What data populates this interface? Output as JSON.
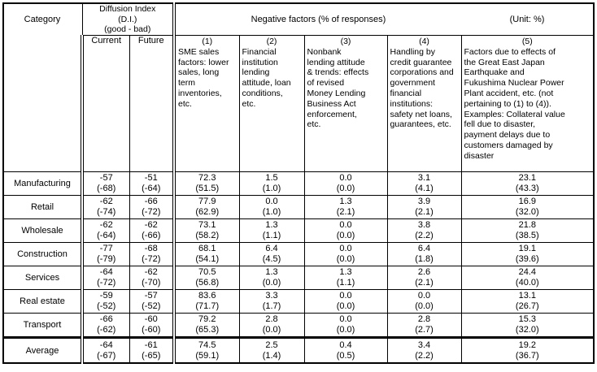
{
  "header": {
    "category": "Category",
    "diffusion_index": "Diffusion Index\n(D.I.)\n(good - bad)",
    "negative_factors": "Negative factors (% of responses)",
    "unit": "(Unit: %)",
    "current": "Current",
    "future": "Future"
  },
  "factors": [
    {
      "num": "(1)",
      "desc": "SME sales\nfactors: lower\nsales, long\nterm\ninventories,\netc."
    },
    {
      "num": "(2)",
      "desc": "Financial\ninstitution\nlending\nattitude, loan\nconditions,\netc."
    },
    {
      "num": "(3)",
      "desc": "Nonbank\nlending attitude\n& trends: effects\nof revised\nMoney Lending\nBusiness Act\nenforcement,\netc."
    },
    {
      "num": "(4)",
      "desc": "Handling by\ncredit guarantee\ncorporations and\ngovernment\nfinancial\ninstitutions:\nsafety net loans,\nguarantees, etc."
    },
    {
      "num": "(5)",
      "desc": "Factors due to effects of\nthe Great East Japan\nEarthquake and\nFukushima Nuclear Power\nPlant accident, etc. (not\npertaining to (1) to (4)).\nExamples: Collateral value\nfell due to disaster,\npayment delays due to\ncustomers damaged by\ndisaster"
    }
  ],
  "rows": [
    {
      "category": "Manufacturing",
      "average": false,
      "cells": [
        [
          "-57",
          "(-68)"
        ],
        [
          "-51",
          "(-64)"
        ],
        [
          "72.3",
          "(51.5)"
        ],
        [
          "1.5",
          "(1.0)"
        ],
        [
          "0.0",
          "(0.0)"
        ],
        [
          "3.1",
          "(4.1)"
        ],
        [
          "23.1",
          "(43.3)"
        ]
      ]
    },
    {
      "category": "Retail",
      "average": false,
      "cells": [
        [
          "-62",
          "(-74)"
        ],
        [
          "-66",
          "(-72)"
        ],
        [
          "77.9",
          "(62.9)"
        ],
        [
          "0.0",
          "(1.0)"
        ],
        [
          "1.3",
          "(2.1)"
        ],
        [
          "3.9",
          "(2.1)"
        ],
        [
          "16.9",
          "(32.0)"
        ]
      ]
    },
    {
      "category": "Wholesale",
      "average": false,
      "cells": [
        [
          "-62",
          "(-64)"
        ],
        [
          "-62",
          "(-66)"
        ],
        [
          "73.1",
          "(58.2)"
        ],
        [
          "1.3",
          "(1.1)"
        ],
        [
          "0.0",
          "(0.0)"
        ],
        [
          "3.8",
          "(2.2)"
        ],
        [
          "21.8",
          "(38.5)"
        ]
      ]
    },
    {
      "category": "Construction",
      "average": false,
      "cells": [
        [
          "-77",
          "(-79)"
        ],
        [
          "-68",
          "(-72)"
        ],
        [
          "68.1",
          "(54.1)"
        ],
        [
          "6.4",
          "(4.5)"
        ],
        [
          "0.0",
          "(0.0)"
        ],
        [
          "6.4",
          "(1.8)"
        ],
        [
          "19.1",
          "(39.6)"
        ]
      ]
    },
    {
      "category": "Services",
      "average": false,
      "cells": [
        [
          "-64",
          "(-72)"
        ],
        [
          "-62",
          "(-70)"
        ],
        [
          "70.5",
          "(56.8)"
        ],
        [
          "1.3",
          "(0.0)"
        ],
        [
          "1.3",
          "(1.1)"
        ],
        [
          "2.6",
          "(2.1)"
        ],
        [
          "24.4",
          "(40.0)"
        ]
      ]
    },
    {
      "category": "Real estate",
      "average": false,
      "cells": [
        [
          "-59",
          "(-52)"
        ],
        [
          "-57",
          "(-52)"
        ],
        [
          "83.6",
          "(71.7)"
        ],
        [
          "3.3",
          "(1.7)"
        ],
        [
          "0.0",
          "(0.0)"
        ],
        [
          "0.0",
          "(0.0)"
        ],
        [
          "13.1",
          "(26.7)"
        ]
      ]
    },
    {
      "category": "Transport",
      "average": false,
      "cells": [
        [
          "-66",
          "(-62)"
        ],
        [
          "-60",
          "(-60)"
        ],
        [
          "79.2",
          "(65.3)"
        ],
        [
          "2.8",
          "(0.0)"
        ],
        [
          "0.0",
          "(0.0)"
        ],
        [
          "2.8",
          "(2.7)"
        ],
        [
          "15.3",
          "(32.0)"
        ]
      ]
    },
    {
      "category": "Average",
      "average": true,
      "cells": [
        [
          "-64",
          "(-67)"
        ],
        [
          "-61",
          "(-65)"
        ],
        [
          "74.5",
          "(59.1)"
        ],
        [
          "2.5",
          "(1.4)"
        ],
        [
          "0.4",
          "(0.5)"
        ],
        [
          "3.4",
          "(2.2)"
        ],
        [
          "19.2",
          "(36.7)"
        ]
      ]
    }
  ]
}
